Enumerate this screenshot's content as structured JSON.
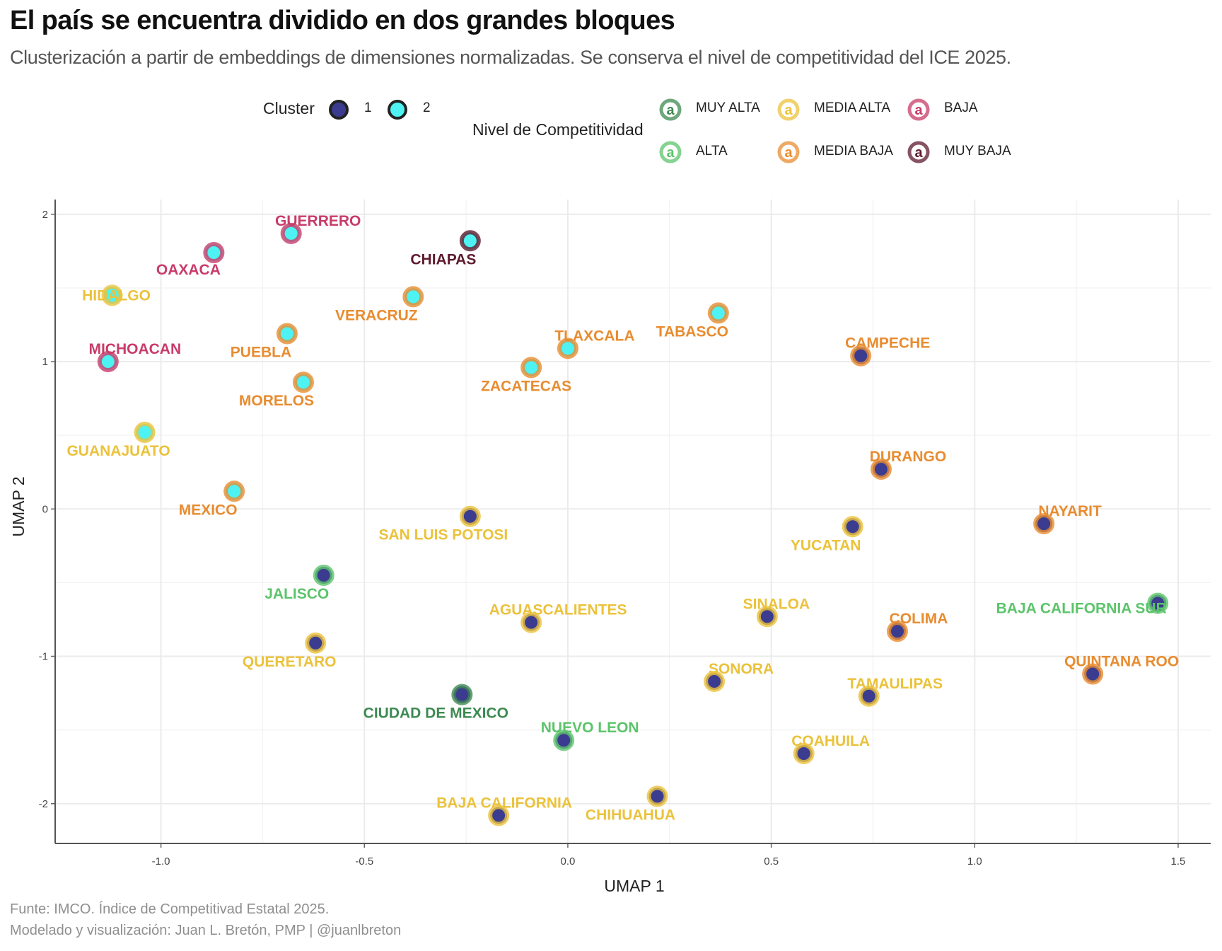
{
  "title": "El país se encuentra dividido en dos grandes bloques",
  "subtitle": "Clusterización a partir de embeddings de dimensiones normalizadas. Se conserva el nivel de competitividad del ICE 2025.",
  "caption_line1": "Funte: IMCO. Índice de Competitivad Estatal 2025.",
  "caption_line2": "Modelado y visualización: Juan L. Bretón, PMP | @juanlbreton",
  "legend": {
    "cluster_title": "Cluster",
    "clusters": [
      {
        "label": "1",
        "color": "#3b3b8f"
      },
      {
        "label": "2",
        "color": "#4ef2f2"
      }
    ],
    "level_title": "Nivel de Competitividad",
    "key_glyph": "a",
    "levels": [
      {
        "label": "MUY ALTA",
        "color": "#3d8a52"
      },
      {
        "label": "MEDIA ALTA",
        "color": "#ebc23b"
      },
      {
        "label": "BAJA",
        "color": "#c83c6a"
      },
      {
        "label": "ALTA",
        "color": "#5cc46b"
      },
      {
        "label": "MEDIA BAJA",
        "color": "#e88c30"
      },
      {
        "label": "MUY BAJA",
        "color": "#5e1a2e"
      }
    ]
  },
  "chart_data": {
    "type": "scatter",
    "title": "El país se encuentra dividido en dos grandes bloques",
    "xlabel": "UMAP 1",
    "ylabel": "UMAP 2",
    "xlim": [
      -1.26,
      1.58
    ],
    "ylim": [
      -2.27,
      2.1
    ],
    "xticks": [
      -1.0,
      -0.5,
      0.0,
      0.5,
      1.0,
      1.5
    ],
    "yticks": [
      2,
      1,
      0,
      -1,
      -2
    ],
    "xtick_labels": [
      "-1.0",
      "-0.5",
      "0.0",
      "0.5",
      "1.0",
      "1.5"
    ],
    "ytick_labels": [
      "2",
      "1",
      "0",
      "-1",
      "-2"
    ],
    "grid": true,
    "legend_position": "top",
    "points": [
      {
        "name": "GUERRERO",
        "x": -0.68,
        "y": 1.87,
        "cluster": "2",
        "level": "BAJA"
      },
      {
        "name": "OAXACA",
        "x": -0.87,
        "y": 1.74,
        "cluster": "2",
        "level": "BAJA"
      },
      {
        "name": "CHIAPAS",
        "x": -0.24,
        "y": 1.82,
        "cluster": "2",
        "level": "MUY BAJA"
      },
      {
        "name": "HIDALGO",
        "x": -1.12,
        "y": 1.45,
        "cluster": "2",
        "level": "MEDIA ALTA"
      },
      {
        "name": "VERACRUZ",
        "x": -0.38,
        "y": 1.44,
        "cluster": "2",
        "level": "MEDIA BAJA"
      },
      {
        "name": "TABASCO",
        "x": 0.37,
        "y": 1.33,
        "cluster": "2",
        "level": "MEDIA BAJA"
      },
      {
        "name": "PUEBLA",
        "x": -0.69,
        "y": 1.19,
        "cluster": "2",
        "level": "MEDIA BAJA"
      },
      {
        "name": "TLAXCALA",
        "x": 0.0,
        "y": 1.09,
        "cluster": "2",
        "level": "MEDIA BAJA"
      },
      {
        "name": "MICHOACAN",
        "x": -1.13,
        "y": 1.0,
        "cluster": "2",
        "level": "BAJA"
      },
      {
        "name": "ZACATECAS",
        "x": -0.09,
        "y": 0.96,
        "cluster": "2",
        "level": "MEDIA BAJA"
      },
      {
        "name": "MORELOS",
        "x": -0.65,
        "y": 0.86,
        "cluster": "2",
        "level": "MEDIA BAJA"
      },
      {
        "name": "GUANAJUATO",
        "x": -1.04,
        "y": 0.52,
        "cluster": "2",
        "level": "MEDIA ALTA"
      },
      {
        "name": "MEXICO",
        "x": -0.82,
        "y": 0.12,
        "cluster": "2",
        "level": "MEDIA BAJA"
      },
      {
        "name": "CAMPECHE",
        "x": 0.72,
        "y": 1.04,
        "cluster": "1",
        "level": "MEDIA BAJA"
      },
      {
        "name": "DURANGO",
        "x": 0.77,
        "y": 0.27,
        "cluster": "1",
        "level": "MEDIA BAJA"
      },
      {
        "name": "NAYARIT",
        "x": 1.17,
        "y": -0.1,
        "cluster": "1",
        "level": "MEDIA BAJA"
      },
      {
        "name": "YUCATAN",
        "x": 0.7,
        "y": -0.12,
        "cluster": "1",
        "level": "MEDIA ALTA"
      },
      {
        "name": "SAN LUIS POTOSI",
        "x": -0.24,
        "y": -0.05,
        "cluster": "1",
        "level": "MEDIA ALTA"
      },
      {
        "name": "JALISCO",
        "x": -0.6,
        "y": -0.45,
        "cluster": "1",
        "level": "ALTA"
      },
      {
        "name": "BAJA CALIFORNIA SUR",
        "x": 1.45,
        "y": -0.64,
        "cluster": "1",
        "level": "ALTA"
      },
      {
        "name": "SINALOA",
        "x": 0.49,
        "y": -0.73,
        "cluster": "1",
        "level": "MEDIA ALTA"
      },
      {
        "name": "AGUASCALIENTES",
        "x": -0.09,
        "y": -0.77,
        "cluster": "1",
        "level": "MEDIA ALTA"
      },
      {
        "name": "COLIMA",
        "x": 0.81,
        "y": -0.83,
        "cluster": "1",
        "level": "MEDIA BAJA"
      },
      {
        "name": "QUERETARO",
        "x": -0.62,
        "y": -0.91,
        "cluster": "1",
        "level": "MEDIA ALTA"
      },
      {
        "name": "QUINTANA ROO",
        "x": 1.29,
        "y": -1.12,
        "cluster": "1",
        "level": "MEDIA BAJA"
      },
      {
        "name": "SONORA",
        "x": 0.36,
        "y": -1.17,
        "cluster": "1",
        "level": "MEDIA ALTA"
      },
      {
        "name": "CIUDAD DE MEXICO",
        "x": -0.26,
        "y": -1.26,
        "cluster": "1",
        "level": "MUY ALTA"
      },
      {
        "name": "TAMAULIPAS",
        "x": 0.74,
        "y": -1.27,
        "cluster": "1",
        "level": "MEDIA ALTA"
      },
      {
        "name": "NUEVO LEON",
        "x": -0.01,
        "y": -1.57,
        "cluster": "1",
        "level": "ALTA"
      },
      {
        "name": "COAHUILA",
        "x": 0.58,
        "y": -1.66,
        "cluster": "1",
        "level": "MEDIA ALTA"
      },
      {
        "name": "CHIHUAHUA",
        "x": 0.22,
        "y": -1.95,
        "cluster": "1",
        "level": "MEDIA ALTA"
      },
      {
        "name": "BAJA CALIFORNIA",
        "x": -0.17,
        "y": -2.08,
        "cluster": "1",
        "level": "MEDIA ALTA"
      }
    ]
  }
}
